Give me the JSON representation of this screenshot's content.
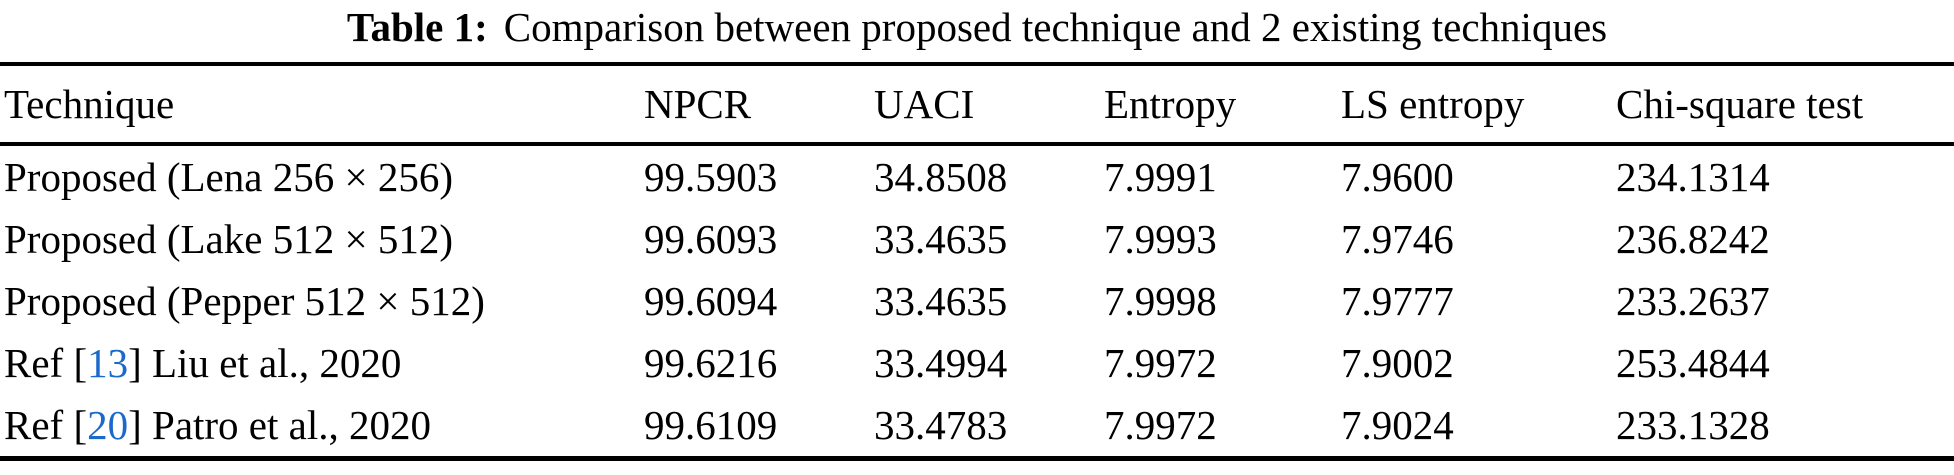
{
  "caption": {
    "label": "Table 1:",
    "text": "Comparison between proposed technique and 2 existing techniques"
  },
  "table": {
    "columns": [
      "Technique",
      "NPCR",
      "UACI",
      "Entropy",
      "LS entropy",
      "Chi-square test"
    ],
    "rows": [
      {
        "technique": {
          "pre": "Proposed (Lena 256 × 256)",
          "cite": "",
          "post": ""
        },
        "npcr": "99.5903",
        "uaci": "34.8508",
        "entropy": "7.9991",
        "ls_entropy": "7.9600",
        "chi_square": "234.1314"
      },
      {
        "technique": {
          "pre": "Proposed (Lake 512 × 512)",
          "cite": "",
          "post": ""
        },
        "npcr": "99.6093",
        "uaci": "33.4635",
        "entropy": "7.9993",
        "ls_entropy": "7.9746",
        "chi_square": "236.8242"
      },
      {
        "technique": {
          "pre": "Proposed (Pepper 512 × 512)",
          "cite": "",
          "post": ""
        },
        "npcr": "99.6094",
        "uaci": "33.4635",
        "entropy": "7.9998",
        "ls_entropy": "7.9777",
        "chi_square": "233.2637"
      },
      {
        "technique": {
          "pre": "Ref [",
          "cite": "13",
          "post": "] Liu et al., 2020"
        },
        "npcr": "99.6216",
        "uaci": "33.4994",
        "entropy": "7.9972",
        "ls_entropy": "7.9002",
        "chi_square": "253.4844"
      },
      {
        "technique": {
          "pre": "Ref [",
          "cite": "20",
          "post": "] Patro et al., 2020"
        },
        "npcr": "99.6109",
        "uaci": "33.4783",
        "entropy": "7.9972",
        "ls_entropy": "7.9024",
        "chi_square": "233.1328"
      }
    ],
    "citation_color": "#1b6ac9",
    "text_color": "#000000"
  }
}
